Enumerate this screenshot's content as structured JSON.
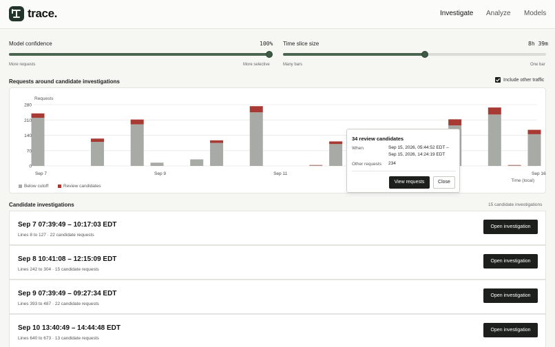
{
  "brand": {
    "name": "trace."
  },
  "nav": {
    "items": [
      "Investigate",
      "Analyze",
      "Models"
    ]
  },
  "controls": {
    "confidence": {
      "label": "Model confidence",
      "value": "100%",
      "min_hint": "More requests",
      "max_hint": "More selective",
      "level": 1.0
    },
    "slice": {
      "label": "Time slice size",
      "value": "8h 39m",
      "min_hint": "Many bars",
      "max_hint": "One bar",
      "level": 0.54
    }
  },
  "chart_section": {
    "title": "Requests around candidate investigations",
    "include_label": "Include other traffic",
    "include_checked": true
  },
  "chart_data": {
    "type": "bar",
    "stacked": true,
    "ylabel": "Requests",
    "xlabel": "Time (local)",
    "ylim": [
      0,
      280
    ],
    "yticks": [
      0,
      70,
      140,
      210,
      280
    ],
    "x_ticks": [
      "Sep 7",
      "Sep 9",
      "Sep 11",
      "Sep 16"
    ],
    "x_tick_index": [
      0,
      6,
      12,
      25
    ],
    "series": [
      {
        "name": "Below cutoff",
        "color": "#a7aaa5",
        "values": [
          220,
          0,
          0,
          110,
          0,
          190,
          15,
          0,
          30,
          105,
          0,
          245,
          0,
          0,
          2,
          100,
          0,
          60,
          0,
          0,
          0,
          185,
          0,
          235,
          2,
          145
        ]
      },
      {
        "name": "Review candidates",
        "color": "#a83a33",
        "values": [
          20,
          0,
          0,
          15,
          0,
          22,
          0,
          0,
          0,
          12,
          0,
          28,
          0,
          0,
          2,
          12,
          0,
          8,
          0,
          0,
          0,
          28,
          0,
          32,
          2,
          20
        ]
      }
    ],
    "grid": true
  },
  "popover": {
    "title": "34 review candidates",
    "when_key": "When",
    "when_line1": "Sep 15, 2026, 05:44:52 EDT –",
    "when_line2": "Sep 15, 2026, 14:24:19 EDT",
    "other_key": "Other requests",
    "other_val": "234",
    "view_label": "View requests",
    "close_label": "Close"
  },
  "investigations": {
    "title": "Candidate investigations",
    "count": "15 candidate investigations",
    "button_label": "Open investigation",
    "items": [
      {
        "title": "Sep 7 07:39:49 – 10:17:03 EDT",
        "sub": "Lines 8 to 127 · 22 candidate requests"
      },
      {
        "title": "Sep 8 10:41:08 – 12:15:09 EDT",
        "sub": "Lines 242 to 304 · 15 candidate requests"
      },
      {
        "title": "Sep 9 07:39:49 – 09:27:34 EDT",
        "sub": "Lines 393 to 487 · 22 candidate requests"
      },
      {
        "title": "Sep 10 13:40:49 – 14:44:48 EDT",
        "sub": "Lines 640 to 673 · 13 candidate requests"
      }
    ]
  }
}
